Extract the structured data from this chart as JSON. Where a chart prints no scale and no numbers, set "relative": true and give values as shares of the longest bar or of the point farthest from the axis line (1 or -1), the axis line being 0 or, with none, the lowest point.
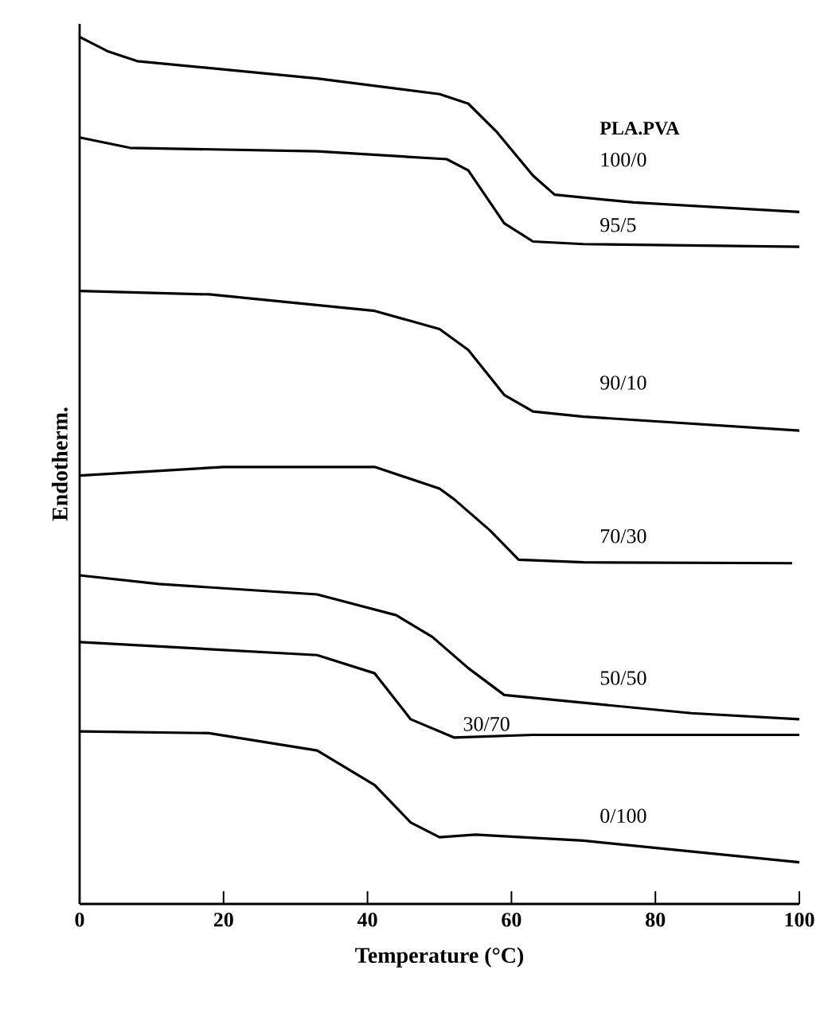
{
  "chart_data": {
    "type": "line",
    "relative": true,
    "xlabel": "Temperature (°C)",
    "ylabel": "Endotherm.",
    "xlim": [
      0,
      100
    ],
    "xticks": [
      0,
      20,
      40,
      60,
      80,
      100
    ],
    "grid": false,
    "marker": "none",
    "line_style": "solid",
    "annotations": [
      "PLA.PVA"
    ],
    "series": [
      {
        "name": "100/0",
        "color": "#000000",
        "x": [
          0,
          4,
          8,
          33,
          50,
          54,
          58,
          63,
          66,
          77,
          100
        ],
        "values": [
          1.0,
          0.983,
          0.972,
          0.952,
          0.934,
          0.923,
          0.89,
          0.84,
          0.818,
          0.809,
          0.798
        ]
      },
      {
        "name": "95/5",
        "color": "#000000",
        "x": [
          0,
          7,
          33,
          51,
          54,
          59,
          63,
          70,
          100
        ],
        "values": [
          0.884,
          0.872,
          0.868,
          0.859,
          0.846,
          0.785,
          0.764,
          0.761,
          0.758
        ]
      },
      {
        "name": "90/10",
        "color": "#000000",
        "x": [
          0,
          18,
          41,
          50,
          54,
          59,
          63,
          70,
          100
        ],
        "values": [
          0.707,
          0.703,
          0.684,
          0.663,
          0.639,
          0.587,
          0.568,
          0.562,
          0.546
        ]
      },
      {
        "name": "70/30",
        "color": "#000000",
        "x": [
          0,
          20,
          41,
          50,
          52,
          57,
          61,
          70,
          99
        ],
        "values": [
          0.494,
          0.504,
          0.504,
          0.479,
          0.467,
          0.431,
          0.397,
          0.394,
          0.393
        ]
      },
      {
        "name": "50/50",
        "color": "#000000",
        "x": [
          0,
          11,
          33,
          44,
          49,
          54,
          59,
          70,
          85,
          100
        ],
        "values": [
          0.379,
          0.369,
          0.357,
          0.333,
          0.308,
          0.272,
          0.241,
          0.232,
          0.22,
          0.213
        ]
      },
      {
        "name": "30/70",
        "color": "#000000",
        "x": [
          0,
          33,
          41,
          46,
          52,
          63,
          100
        ],
        "values": [
          0.302,
          0.287,
          0.266,
          0.213,
          0.192,
          0.195,
          0.195
        ]
      },
      {
        "name": "0/100",
        "color": "#000000",
        "x": [
          0,
          18,
          33,
          41,
          46,
          50,
          55,
          70,
          100
        ],
        "values": [
          0.199,
          0.197,
          0.177,
          0.137,
          0.094,
          0.077,
          0.08,
          0.073,
          0.048
        ]
      }
    ]
  }
}
